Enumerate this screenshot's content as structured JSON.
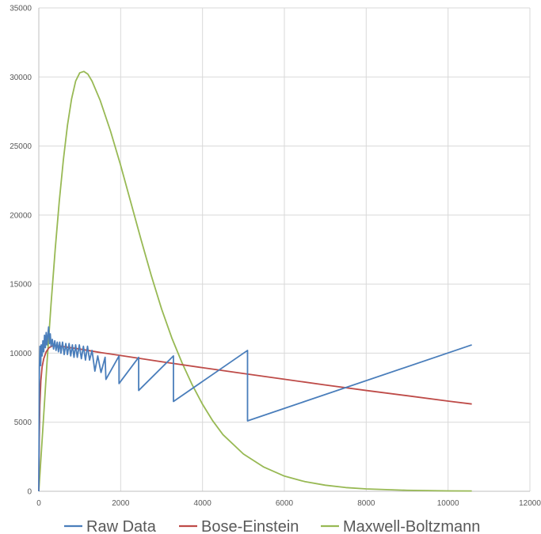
{
  "chart_data": {
    "type": "line",
    "xlim": [
      0,
      12000
    ],
    "ylim": [
      0,
      35000
    ],
    "x_ticks": [
      0,
      2000,
      4000,
      6000,
      8000,
      10000,
      12000
    ],
    "y_ticks": [
      0,
      5000,
      10000,
      15000,
      20000,
      25000,
      30000,
      35000
    ],
    "grid": true,
    "legend_position": "bottom",
    "series": [
      {
        "name": "Raw Data",
        "color": "#4a7ebb",
        "points": [
          [
            0,
            0
          ],
          [
            15,
            9000
          ],
          [
            30,
            10500
          ],
          [
            45,
            9100
          ],
          [
            60,
            10600
          ],
          [
            80,
            9800
          ],
          [
            100,
            10900
          ],
          [
            120,
            10100
          ],
          [
            140,
            11300
          ],
          [
            160,
            10400
          ],
          [
            180,
            11500
          ],
          [
            200,
            10600
          ],
          [
            220,
            11300
          ],
          [
            240,
            11900
          ],
          [
            260,
            10700
          ],
          [
            280,
            11400
          ],
          [
            300,
            10500
          ],
          [
            330,
            11000
          ],
          [
            360,
            10300
          ],
          [
            390,
            10900
          ],
          [
            420,
            10200
          ],
          [
            450,
            10800
          ],
          [
            480,
            10100
          ],
          [
            510,
            10800
          ],
          [
            540,
            10000
          ],
          [
            580,
            10800
          ],
          [
            620,
            9900
          ],
          [
            660,
            10700
          ],
          [
            700,
            9900
          ],
          [
            740,
            10700
          ],
          [
            780,
            9800
          ],
          [
            820,
            10600
          ],
          [
            860,
            9700
          ],
          [
            900,
            10600
          ],
          [
            940,
            9700
          ],
          [
            990,
            10600
          ],
          [
            1040,
            9600
          ],
          [
            1090,
            10500
          ],
          [
            1140,
            9500
          ],
          [
            1190,
            10500
          ],
          [
            1240,
            9500
          ],
          [
            1300,
            10200
          ],
          [
            1370,
            8700
          ],
          [
            1440,
            9800
          ],
          [
            1520,
            8600
          ],
          [
            1620,
            9700
          ],
          [
            1640,
            8100
          ],
          [
            1960,
            9800
          ],
          [
            1960,
            7800
          ],
          [
            2440,
            9700
          ],
          [
            2440,
            7300
          ],
          [
            3290,
            9800
          ],
          [
            3290,
            6500
          ],
          [
            5100,
            10200
          ],
          [
            5100,
            5100
          ],
          [
            10580,
            10600
          ]
        ]
      },
      {
        "name": "Bose-Einstein",
        "color": "#be4b48",
        "points": [
          [
            0,
            0
          ],
          [
            10,
            3500
          ],
          [
            25,
            6200
          ],
          [
            50,
            8000
          ],
          [
            80,
            9000
          ],
          [
            120,
            9600
          ],
          [
            180,
            10100
          ],
          [
            250,
            10400
          ],
          [
            350,
            10550
          ],
          [
            500,
            10520
          ],
          [
            700,
            10430
          ],
          [
            1000,
            10300
          ],
          [
            1500,
            10050
          ],
          [
            2000,
            9830
          ],
          [
            3000,
            9380
          ],
          [
            4000,
            8950
          ],
          [
            5000,
            8530
          ],
          [
            6000,
            8110
          ],
          [
            7000,
            7700
          ],
          [
            8000,
            7300
          ],
          [
            9000,
            6920
          ],
          [
            10000,
            6530
          ],
          [
            10580,
            6320
          ]
        ]
      },
      {
        "name": "Maxwell-Boltzmann",
        "color": "#98b954",
        "points": [
          [
            0,
            0
          ],
          [
            100,
            4600
          ],
          [
            200,
            9300
          ],
          [
            300,
            13600
          ],
          [
            400,
            17500
          ],
          [
            500,
            21000
          ],
          [
            600,
            24000
          ],
          [
            700,
            26500
          ],
          [
            800,
            28400
          ],
          [
            900,
            29700
          ],
          [
            1000,
            30300
          ],
          [
            1100,
            30400
          ],
          [
            1200,
            30200
          ],
          [
            1300,
            29700
          ],
          [
            1500,
            28300
          ],
          [
            1750,
            26100
          ],
          [
            2000,
            23600
          ],
          [
            2250,
            20900
          ],
          [
            2500,
            18200
          ],
          [
            2750,
            15600
          ],
          [
            3000,
            13200
          ],
          [
            3250,
            11100
          ],
          [
            3500,
            9300
          ],
          [
            3750,
            7700
          ],
          [
            4000,
            6300
          ],
          [
            4250,
            5100
          ],
          [
            4500,
            4100
          ],
          [
            5000,
            2700
          ],
          [
            5500,
            1750
          ],
          [
            6000,
            1100
          ],
          [
            6500,
            700
          ],
          [
            7000,
            440
          ],
          [
            7500,
            270
          ],
          [
            8000,
            170
          ],
          [
            9000,
            70
          ],
          [
            10000,
            30
          ],
          [
            10580,
            20
          ]
        ]
      }
    ]
  }
}
